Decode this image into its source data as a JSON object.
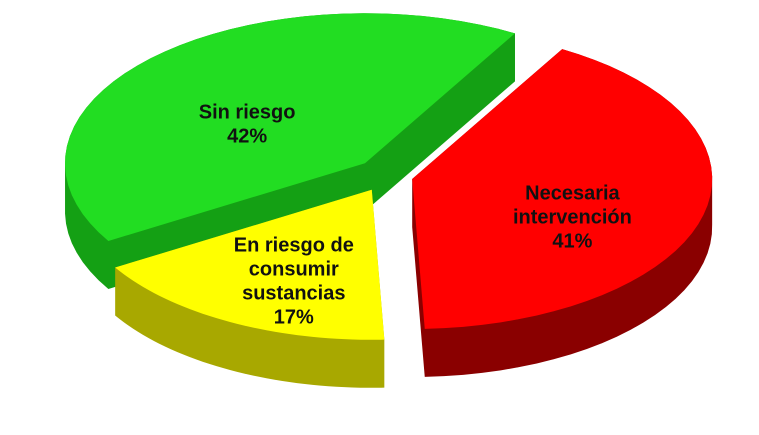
{
  "chart_data": {
    "type": "pie3d",
    "categories": [
      "Necesaria intervención",
      "En riesgo de consumir sustancias",
      "Sin riesgo"
    ],
    "values": [
      41,
      17,
      42
    ],
    "value_labels": [
      "41%",
      "17%",
      "42%"
    ],
    "colors": [
      "#ff0000",
      "#ffff00",
      "#22dd22"
    ],
    "side_colors": [
      "#8a0000",
      "#a8a800",
      "#14a014"
    ]
  }
}
